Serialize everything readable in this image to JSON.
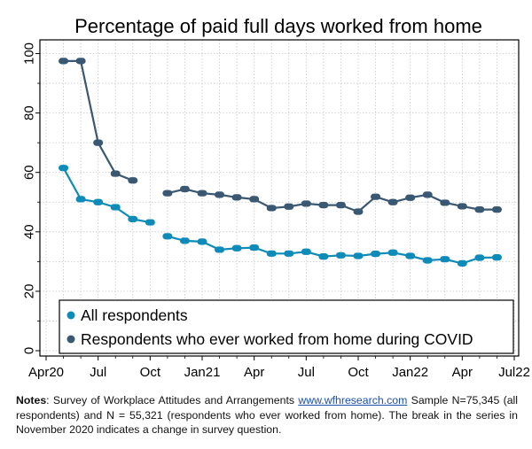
{
  "chart_data": {
    "type": "line",
    "title": "Percentage of paid full days worked from home",
    "xlabel": "",
    "ylabel": "",
    "ylim": [
      0,
      100
    ],
    "yticks": [
      "0",
      "20",
      "40",
      "60",
      "80",
      "100"
    ],
    "xlim": [
      "2020-04",
      "2022-07"
    ],
    "xticks": [
      "Apr20",
      "Jul",
      "Oct",
      "Jan21",
      "Apr",
      "Jul",
      "Oct",
      "Jan22",
      "Apr",
      "Jul22"
    ],
    "grid": true,
    "legend_position": "bottom-left",
    "series": [
      {
        "name": "All respondents",
        "color": "#0e8bb8",
        "segments": [
          [
            [
              "2020-05",
              61.5
            ],
            [
              "2020-06",
              51
            ],
            [
              "2020-07",
              50
            ],
            [
              "2020-08",
              48.3
            ],
            [
              "2020-09",
              44.3
            ],
            [
              "2020-10",
              43.2
            ]
          ],
          [
            [
              "2020-11",
              38.5
            ],
            [
              "2020-12",
              37
            ],
            [
              "2021-01",
              36.7
            ],
            [
              "2021-02",
              34
            ],
            [
              "2021-03",
              34.5
            ],
            [
              "2021-04",
              34.7
            ],
            [
              "2021-05",
              32.7
            ],
            [
              "2021-06",
              32.7
            ],
            [
              "2021-07",
              33.3
            ],
            [
              "2021-08",
              31.7
            ],
            [
              "2021-09",
              32.1
            ],
            [
              "2021-10",
              31.9
            ],
            [
              "2021-11",
              32.6
            ],
            [
              "2021-12",
              33
            ],
            [
              "2022-01",
              31.9
            ],
            [
              "2022-02",
              30.4
            ],
            [
              "2022-03",
              30.8
            ],
            [
              "2022-04",
              29.4
            ],
            [
              "2022-05",
              31.3
            ],
            [
              "2022-06",
              31.4
            ]
          ]
        ]
      },
      {
        "name": "Respondents who ever worked from home during COVID",
        "color": "#3a5872",
        "segments": [
          [
            [
              "2020-05",
              97.5
            ],
            [
              "2020-06",
              97.5
            ],
            [
              "2020-07",
              70
            ],
            [
              "2020-08",
              59.6
            ],
            [
              "2020-09",
              57.3
            ]
          ],
          [
            [
              "2020-11",
              53
            ],
            [
              "2020-12",
              54.4
            ],
            [
              "2021-01",
              53
            ],
            [
              "2021-02",
              52.5
            ],
            [
              "2021-03",
              51.6
            ],
            [
              "2021-04",
              51
            ],
            [
              "2021-05",
              48
            ],
            [
              "2021-06",
              48.5
            ],
            [
              "2021-07",
              49.5
            ],
            [
              "2021-08",
              49
            ],
            [
              "2021-09",
              49
            ],
            [
              "2021-10",
              46.8
            ],
            [
              "2021-11",
              51.8
            ],
            [
              "2021-12",
              50
            ],
            [
              "2022-01",
              51.5
            ],
            [
              "2022-02",
              52.5
            ],
            [
              "2022-03",
              49.8
            ],
            [
              "2022-04",
              48.6
            ],
            [
              "2022-05",
              47.5
            ],
            [
              "2022-06",
              47.5
            ]
          ]
        ]
      }
    ]
  },
  "notes": {
    "label": "Notes",
    "text_before_link": ": Survey of Workplace Attitudes and Arrangements ",
    "link": "www.wfhresearch.com",
    "text_after_link": " Sample N=75,345 (all respondents) and N = 55,321 (respondents who ever worked from home). The break in the series in November 2020 indicates a change in survey question."
  }
}
